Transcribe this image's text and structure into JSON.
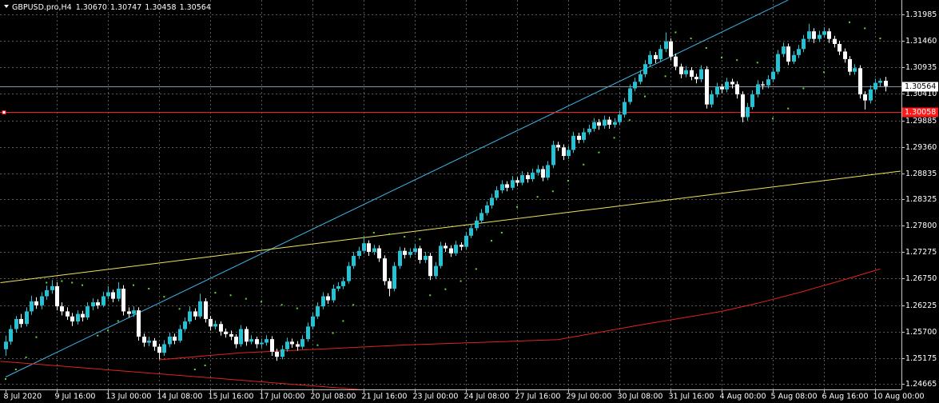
{
  "chart_data": {
    "type": "candlestick",
    "symbol": "GBPUSD.pro,H4",
    "ohlc_labels": [
      "1.30670",
      "1.30747",
      "1.30458",
      "1.30564"
    ],
    "bull_color": "#26c2d4",
    "bear_color": "#ffffff",
    "ylim": [
      1.24554,
      1.32271
    ],
    "yticks": [
      1.31985,
      {
        "value": 1.3146,
        "label": "1.31460"
      },
      1.30935,
      {
        "value": 1.3041,
        "label": "1.30410"
      },
      1.29885,
      {
        "value": 1.2936,
        "label": "1.29360"
      },
      1.28835,
      1.28325,
      {
        "value": 1.278,
        "label": "1.27800"
      },
      1.27275,
      {
        "value": 1.2675,
        "label": "1.26750"
      },
      1.26225,
      {
        "value": 1.257,
        "label": "1.25700"
      },
      1.25175,
      1.24665
    ],
    "grid": true,
    "time_labels": [
      "8 Jul 2020",
      "9 Jul 16:00",
      "13 Jul 00:00",
      "14 Jul 08:00",
      "15 Jul 16:00",
      "17 Jul 00:00",
      "20 Jul 08:00",
      "21 Jul 16:00",
      "23 Jul 00:00",
      "24 Jul 08:00",
      "27 Jul 16:00",
      "29 Jul 00:00",
      "30 Jul 08:00",
      "31 Jul 16:00",
      "4 Aug 00:00",
      "5 Aug 08:00",
      "6 Aug 16:00",
      "10 Aug 00:00"
    ],
    "bid": 1.30564,
    "bid_color": "#7f93a6",
    "alert_level": 1.30058,
    "alert_color": "#ff1a1a",
    "candles": [
      [
        1.2535,
        1.2562,
        1.2522,
        1.255
      ],
      [
        1.255,
        1.2583,
        1.2544,
        1.2575
      ],
      [
        1.2575,
        1.2601,
        1.2568,
        1.2595
      ],
      [
        1.2595,
        1.2605,
        1.2578,
        1.2585
      ],
      [
        1.2585,
        1.2618,
        1.258,
        1.261
      ],
      [
        1.261,
        1.2641,
        1.2603,
        1.263
      ],
      [
        1.263,
        1.2638,
        1.2615,
        1.2622
      ],
      [
        1.2622,
        1.2648,
        1.2614,
        1.264
      ],
      [
        1.264,
        1.2661,
        1.2633,
        1.2652
      ],
      [
        1.2652,
        1.2672,
        1.2645,
        1.266
      ],
      [
        1.266,
        1.2668,
        1.2612,
        1.262
      ],
      [
        1.262,
        1.2628,
        1.2602,
        1.261
      ],
      [
        1.261,
        1.2618,
        1.2593,
        1.26
      ],
      [
        1.26,
        1.2607,
        1.2581,
        1.259
      ],
      [
        1.259,
        1.2612,
        1.2584,
        1.2605
      ],
      [
        1.2605,
        1.2611,
        1.259,
        1.2598
      ],
      [
        1.2598,
        1.2628,
        1.2593,
        1.262
      ],
      [
        1.262,
        1.2636,
        1.2612,
        1.2628
      ],
      [
        1.2628,
        1.2634,
        1.2615,
        1.2622
      ],
      [
        1.2622,
        1.2649,
        1.2618,
        1.264
      ],
      [
        1.264,
        1.266,
        1.2634,
        1.2648
      ],
      [
        1.2648,
        1.2653,
        1.2628,
        1.2635
      ],
      [
        1.2635,
        1.2668,
        1.263,
        1.2655
      ],
      [
        1.2655,
        1.2662,
        1.2602,
        1.261
      ],
      [
        1.261,
        1.2618,
        1.2598,
        1.2605
      ],
      [
        1.2605,
        1.262,
        1.2599,
        1.2612
      ],
      [
        1.2612,
        1.2618,
        1.2552,
        1.256
      ],
      [
        1.256,
        1.2566,
        1.254,
        1.2548
      ],
      [
        1.2548,
        1.256,
        1.2541,
        1.2552
      ],
      [
        1.2552,
        1.2557,
        1.2532,
        1.254
      ],
      [
        1.254,
        1.2546,
        1.2515,
        1.2528
      ],
      [
        1.2528,
        1.2553,
        1.2522,
        1.2545
      ],
      [
        1.2545,
        1.2568,
        1.2539,
        1.256
      ],
      [
        1.256,
        1.2566,
        1.2545,
        1.2552
      ],
      [
        1.2552,
        1.2583,
        1.2548,
        1.2575
      ],
      [
        1.2575,
        1.2598,
        1.257,
        1.259
      ],
      [
        1.259,
        1.262,
        1.2585,
        1.261
      ],
      [
        1.261,
        1.2616,
        1.2593,
        1.26
      ],
      [
        1.26,
        1.2645,
        1.2596,
        1.263
      ],
      [
        1.263,
        1.2636,
        1.2588,
        1.2595
      ],
      [
        1.2595,
        1.2601,
        1.2572,
        1.258
      ],
      [
        1.258,
        1.2592,
        1.2574,
        1.2585
      ],
      [
        1.2585,
        1.259,
        1.2562,
        1.257
      ],
      [
        1.257,
        1.2576,
        1.2558,
        1.2565
      ],
      [
        1.2565,
        1.2572,
        1.2553,
        1.256
      ],
      [
        1.256,
        1.2565,
        1.2537,
        1.2545
      ],
      [
        1.2545,
        1.2583,
        1.254,
        1.2575
      ],
      [
        1.2575,
        1.258,
        1.2542,
        1.255
      ],
      [
        1.255,
        1.2563,
        1.2545,
        1.2555
      ],
      [
        1.2555,
        1.256,
        1.2537,
        1.2545
      ],
      [
        1.2545,
        1.2556,
        1.2538,
        1.2548
      ],
      [
        1.2548,
        1.2563,
        1.2542,
        1.2555
      ],
      [
        1.2555,
        1.2561,
        1.2522,
        1.253
      ],
      [
        1.253,
        1.2536,
        1.2512,
        1.252
      ],
      [
        1.252,
        1.2543,
        1.2515,
        1.2535
      ],
      [
        1.2535,
        1.2558,
        1.253,
        1.255
      ],
      [
        1.255,
        1.2556,
        1.2538,
        1.2545
      ],
      [
        1.2545,
        1.2551,
        1.2532,
        1.254
      ],
      [
        1.254,
        1.2563,
        1.2535,
        1.2555
      ],
      [
        1.2555,
        1.2588,
        1.255,
        1.258
      ],
      [
        1.258,
        1.2608,
        1.2574,
        1.26
      ],
      [
        1.26,
        1.2628,
        1.2595,
        1.262
      ],
      [
        1.262,
        1.2648,
        1.2614,
        1.264
      ],
      [
        1.264,
        1.2646,
        1.2625,
        1.2632
      ],
      [
        1.2632,
        1.2663,
        1.2627,
        1.2655
      ],
      [
        1.2655,
        1.2668,
        1.265,
        1.266
      ],
      [
        1.266,
        1.2678,
        1.2654,
        1.267
      ],
      [
        1.267,
        1.2708,
        1.2665,
        1.27
      ],
      [
        1.27,
        1.2728,
        1.2694,
        1.272
      ],
      [
        1.272,
        1.2738,
        1.2714,
        1.273
      ],
      [
        1.273,
        1.276,
        1.2724,
        1.2745
      ],
      [
        1.2745,
        1.2751,
        1.272,
        1.2728
      ],
      [
        1.2728,
        1.2742,
        1.2722,
        1.2735
      ],
      [
        1.2735,
        1.2741,
        1.2708,
        1.2715
      ],
      [
        1.2715,
        1.2721,
        1.2662,
        1.267
      ],
      [
        1.267,
        1.2676,
        1.264,
        1.2655
      ],
      [
        1.2655,
        1.2708,
        1.265,
        1.27
      ],
      [
        1.27,
        1.2738,
        1.2694,
        1.273
      ],
      [
        1.273,
        1.2736,
        1.2715,
        1.2722
      ],
      [
        1.2722,
        1.2735,
        1.2716,
        1.2728
      ],
      [
        1.2728,
        1.2744,
        1.2722,
        1.2735
      ],
      [
        1.2735,
        1.274,
        1.2705,
        1.2712
      ],
      [
        1.2712,
        1.2728,
        1.2706,
        1.272
      ],
      [
        1.272,
        1.2726,
        1.2672,
        1.268
      ],
      [
        1.268,
        1.2708,
        1.2674,
        1.27
      ],
      [
        1.27,
        1.2748,
        1.2695,
        1.274
      ],
      [
        1.274,
        1.2746,
        1.2728,
        1.2735
      ],
      [
        1.2735,
        1.2741,
        1.2718,
        1.2725
      ],
      [
        1.2725,
        1.275,
        1.272,
        1.2742
      ],
      [
        1.2742,
        1.2747,
        1.2731,
        1.2738
      ],
      [
        1.2738,
        1.2768,
        1.2732,
        1.276
      ],
      [
        1.276,
        1.2783,
        1.2755,
        1.2775
      ],
      [
        1.2775,
        1.2798,
        1.277,
        1.279
      ],
      [
        1.279,
        1.2813,
        1.2784,
        1.2805
      ],
      [
        1.2805,
        1.2828,
        1.28,
        1.282
      ],
      [
        1.282,
        1.2843,
        1.2814,
        1.2835
      ],
      [
        1.2835,
        1.2858,
        1.283,
        1.285
      ],
      [
        1.285,
        1.287,
        1.2844,
        1.2862
      ],
      [
        1.2862,
        1.2868,
        1.2848,
        1.2855
      ],
      [
        1.2855,
        1.2878,
        1.285,
        1.287
      ],
      [
        1.287,
        1.2876,
        1.2858,
        1.2865
      ],
      [
        1.2865,
        1.2888,
        1.286,
        1.288
      ],
      [
        1.288,
        1.2886,
        1.2865,
        1.2872
      ],
      [
        1.2872,
        1.2893,
        1.2867,
        1.2885
      ],
      [
        1.2885,
        1.29,
        1.2879,
        1.2892
      ],
      [
        1.2892,
        1.2898,
        1.2868,
        1.2875
      ],
      [
        1.2875,
        1.2908,
        1.287,
        1.29
      ],
      [
        1.29,
        1.2948,
        1.2894,
        1.294
      ],
      [
        1.294,
        1.2946,
        1.2928,
        1.2935
      ],
      [
        1.2935,
        1.2941,
        1.291,
        1.2918
      ],
      [
        1.2918,
        1.2938,
        1.2912,
        1.293
      ],
      [
        1.293,
        1.2966,
        1.2924,
        1.2958
      ],
      [
        1.2958,
        1.2964,
        1.2943,
        1.295
      ],
      [
        1.295,
        1.2973,
        1.2944,
        1.2965
      ],
      [
        1.2965,
        1.298,
        1.296,
        1.2972
      ],
      [
        1.2972,
        1.2993,
        1.2966,
        1.2985
      ],
      [
        1.2985,
        1.2991,
        1.297,
        1.2978
      ],
      [
        1.2978,
        1.2998,
        1.2972,
        1.299
      ],
      [
        1.299,
        1.2996,
        1.2972,
        1.298
      ],
      [
        1.298,
        1.2993,
        1.2974,
        1.2985
      ],
      [
        1.2985,
        1.3008,
        1.298,
        1.3
      ],
      [
        1.3,
        1.3033,
        1.2994,
        1.3025
      ],
      [
        1.3025,
        1.306,
        1.302,
        1.3052
      ],
      [
        1.3052,
        1.3073,
        1.3046,
        1.3065
      ],
      [
        1.3065,
        1.3088,
        1.306,
        1.308
      ],
      [
        1.308,
        1.3108,
        1.3074,
        1.31
      ],
      [
        1.31,
        1.3126,
        1.3094,
        1.3118
      ],
      [
        1.3118,
        1.3124,
        1.3102,
        1.311
      ],
      [
        1.311,
        1.3138,
        1.3104,
        1.313
      ],
      [
        1.313,
        1.3163,
        1.3124,
        1.3145
      ],
      [
        1.3145,
        1.3151,
        1.3108,
        1.3115
      ],
      [
        1.3115,
        1.3121,
        1.3088,
        1.3095
      ],
      [
        1.3095,
        1.3101,
        1.3072,
        1.308
      ],
      [
        1.308,
        1.3096,
        1.3074,
        1.3088
      ],
      [
        1.3088,
        1.3094,
        1.3068,
        1.3075
      ],
      [
        1.3075,
        1.3081,
        1.3062,
        1.307
      ],
      [
        1.307,
        1.3098,
        1.3064,
        1.309
      ],
      [
        1.309,
        1.3096,
        1.3012,
        1.302
      ],
      [
        1.302,
        1.3048,
        1.3014,
        1.304
      ],
      [
        1.304,
        1.3063,
        1.3034,
        1.3055
      ],
      [
        1.3055,
        1.3061,
        1.3042,
        1.305
      ],
      [
        1.305,
        1.3073,
        1.3044,
        1.3065
      ],
      [
        1.3065,
        1.3071,
        1.3052,
        1.306
      ],
      [
        1.306,
        1.3066,
        1.3032,
        1.304
      ],
      [
        1.304,
        1.3046,
        1.2985,
        1.2995
      ],
      [
        1.2995,
        1.3023,
        1.2988,
        1.3015
      ],
      [
        1.3015,
        1.3048,
        1.301,
        1.304
      ],
      [
        1.304,
        1.3068,
        1.3034,
        1.306
      ],
      [
        1.306,
        1.3066,
        1.305,
        1.3058
      ],
      [
        1.3058,
        1.3078,
        1.3052,
        1.307
      ],
      [
        1.307,
        1.3093,
        1.3064,
        1.3085
      ],
      [
        1.3085,
        1.3128,
        1.308,
        1.312
      ],
      [
        1.312,
        1.3143,
        1.3114,
        1.3135
      ],
      [
        1.3135,
        1.3141,
        1.3098,
        1.3105
      ],
      [
        1.3105,
        1.3126,
        1.31,
        1.3118
      ],
      [
        1.3118,
        1.3138,
        1.3112,
        1.313
      ],
      [
        1.313,
        1.3158,
        1.3124,
        1.315
      ],
      [
        1.315,
        1.318,
        1.3144,
        1.3165
      ],
      [
        1.3165,
        1.3171,
        1.3142,
        1.315
      ],
      [
        1.315,
        1.3166,
        1.3144,
        1.3158
      ],
      [
        1.3158,
        1.3173,
        1.3152,
        1.3165
      ],
      [
        1.3165,
        1.3171,
        1.3142,
        1.315
      ],
      [
        1.315,
        1.3156,
        1.3133,
        1.314
      ],
      [
        1.314,
        1.3146,
        1.3118,
        1.3125
      ],
      [
        1.3125,
        1.3131,
        1.3103,
        1.311
      ],
      [
        1.311,
        1.3116,
        1.3078,
        1.3085
      ],
      [
        1.3085,
        1.31,
        1.3079,
        1.3092
      ],
      [
        1.3092,
        1.3098,
        1.3032,
        1.304
      ],
      [
        1.304,
        1.3046,
        1.301,
        1.3028
      ],
      [
        1.3028,
        1.3058,
        1.3022,
        1.305
      ],
      [
        1.305,
        1.3071,
        1.3044,
        1.3063
      ],
      [
        1.3063,
        1.3072,
        1.3055,
        1.3067
      ],
      [
        1.3067,
        1.30747,
        1.30458,
        1.30564
      ]
    ],
    "ma": {
      "color": "#e3231c",
      "x": [
        30,
        46,
        61,
        77,
        108,
        124,
        140,
        147,
        155,
        163,
        171
      ],
      "values": [
        1.2514,
        1.2528,
        1.2535,
        1.2543,
        1.2554,
        1.2583,
        1.261,
        1.2626,
        1.2647,
        1.267,
        1.2694
      ]
    },
    "sar": {
      "color": "#66d433",
      "x": [
        0,
        2,
        4,
        6,
        8,
        11,
        13,
        15,
        18,
        20,
        22,
        25,
        28,
        31,
        34,
        37,
        39,
        41,
        44,
        47,
        50,
        54,
        57,
        61,
        64,
        66,
        68,
        72,
        75,
        78,
        81,
        83,
        86,
        89,
        92,
        95,
        97,
        100,
        104,
        107,
        110,
        113,
        116,
        119,
        122,
        125,
        129,
        131,
        134,
        137,
        140,
        143,
        147,
        150,
        153,
        156,
        160,
        165,
        168,
        171
      ],
      "values": [
        1.2476,
        1.2495,
        1.2519,
        1.2559,
        1.2667,
        1.267,
        1.2667,
        1.2662,
        1.2562,
        1.2572,
        1.2591,
        1.2662,
        1.2655,
        1.2639,
        1.2615,
        1.2495,
        1.2503,
        1.2647,
        1.2642,
        1.2635,
        1.2629,
        1.2623,
        1.2616,
        1.2543,
        1.2567,
        1.2591,
        1.2623,
        1.2766,
        1.2763,
        1.2758,
        1.2753,
        1.2642,
        1.2654,
        1.267,
        1.2694,
        1.275,
        1.2766,
        1.2817,
        1.2837,
        1.2848,
        1.2869,
        1.2901,
        1.2925,
        1.2954,
        1.2989,
        1.3036,
        1.3076,
        1.3163,
        1.3151,
        1.3132,
        1.3113,
        1.3108,
        1.3103,
        1.2992,
        1.3012,
        1.3052,
        1.3084,
        1.3183,
        1.3171,
        1.3151
      ]
    },
    "trendlines": [
      {
        "color": "#3db6e8",
        "x": [
          0,
          153
        ],
        "values": [
          1.248,
          1.3227
        ]
      },
      {
        "color": "#efe35a",
        "x": [
          -1,
          175
        ],
        "values": [
          1.2667,
          1.2888
        ]
      },
      {
        "color": "#e3231c",
        "x": [
          -1,
          73
        ],
        "values": [
          1.2511,
          1.2452
        ]
      }
    ]
  }
}
